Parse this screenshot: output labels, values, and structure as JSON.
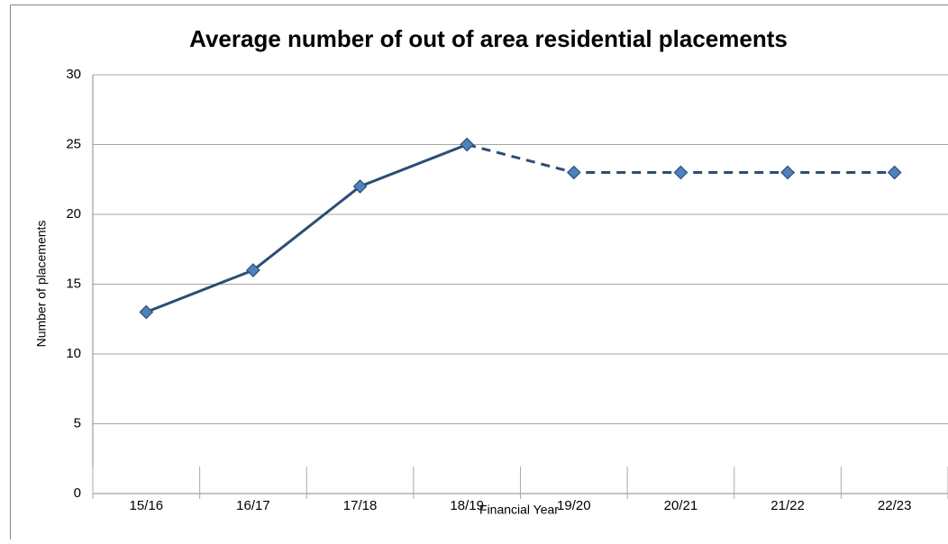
{
  "chart_data": {
    "type": "line",
    "title": "Average number of out of area residential placements",
    "x_label": "Financial Year",
    "y_label": "Number  of placements",
    "categories": [
      "15/16",
      "16/17",
      "17/18",
      "18/19",
      "19/20",
      "20/21",
      "21/22",
      "22/23"
    ],
    "values": [
      13,
      16,
      22,
      25,
      23,
      23,
      23,
      23
    ],
    "color": "#2c4d75",
    "marker_color": "#4f81bd",
    "dash_from": 3,
    "ylim": [
      0,
      30
    ],
    "yticks": [
      0,
      5,
      10,
      15,
      20,
      25,
      30
    ],
    "grid": true
  }
}
